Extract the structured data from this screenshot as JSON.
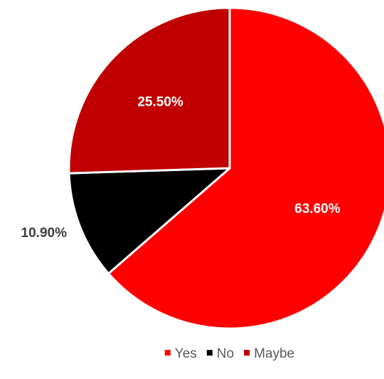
{
  "chart_data": {
    "type": "pie",
    "categories": [
      "Yes",
      "No",
      "Maybe"
    ],
    "values": [
      63.6,
      10.9,
      25.5
    ],
    "data_labels": [
      "63.60%",
      "10.90%",
      "25.50%"
    ],
    "colors": [
      "#ff0000",
      "#000000",
      "#c00000"
    ],
    "label_colors": [
      "#ffffff",
      "#404040",
      "#ffffff"
    ],
    "label_inside": [
      true,
      false,
      true
    ],
    "start_angle_deg": 0,
    "direction": "clockwise",
    "legend_position": "bottom",
    "title": ""
  }
}
